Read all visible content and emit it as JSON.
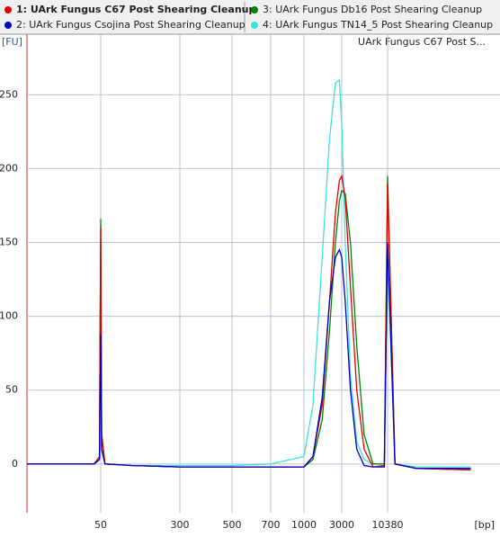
{
  "chart_data": {
    "type": "line",
    "title": "UArk Fungus C67 Post S...",
    "y_label": "[FU]",
    "x_label": "[bp]",
    "x": [
      15,
      45,
      49,
      50,
      51,
      55,
      100,
      300,
      500,
      700,
      1000,
      1300,
      1700,
      2100,
      2500,
      2800,
      3000,
      3300,
      3800,
      4500,
      5500,
      7000,
      9500,
      10380,
      11000,
      13000,
      20000
    ],
    "series": [
      {
        "name": "1: UArk Fungus C67 Post Shearing Cleanup",
        "color": "#e00000",
        "values": [
          0,
          0,
          5,
          160,
          20,
          0,
          -1,
          -2,
          -2,
          -2,
          -2,
          5,
          40,
          110,
          170,
          192,
          195,
          180,
          120,
          50,
          10,
          -2,
          -1,
          190,
          0,
          -3,
          -4
        ]
      },
      {
        "name": "2: UArk Fungus Csojina Post Shearing Cleanup",
        "color": "#0000c0",
        "values": [
          0,
          0,
          3,
          88,
          10,
          0,
          -1,
          -2,
          -2,
          -2,
          -2,
          5,
          45,
          110,
          140,
          145,
          140,
          110,
          50,
          10,
          -1,
          -2,
          -2,
          150,
          0,
          -3,
          -3
        ]
      },
      {
        "name": "3: UArk Fungus Db16 Post Shearing Cleanup",
        "color": "#008000",
        "values": [
          0,
          0,
          5,
          166,
          20,
          0,
          -1,
          -2,
          -2,
          -2,
          -2,
          3,
          30,
          90,
          150,
          178,
          185,
          183,
          150,
          80,
          20,
          0,
          0,
          195,
          0,
          -3,
          -4
        ]
      },
      {
        "name": "4: UArk Fungus TN14_5 Post Shearing Cleanup",
        "color": "#40e0e0",
        "values": [
          0,
          0,
          5,
          150,
          20,
          0,
          -1,
          -1,
          -1,
          0,
          5,
          40,
          140,
          220,
          258,
          260,
          230,
          150,
          60,
          15,
          3,
          0,
          0,
          140,
          0,
          -2,
          -2
        ]
      }
    ],
    "xlim": [
      15,
      25000
    ],
    "xticks": [
      50,
      300,
      500,
      700,
      1000,
      3000,
      10380
    ],
    "ylim": [
      -33,
      291
    ],
    "yticks": [
      0,
      50,
      100,
      150,
      200,
      250
    ],
    "grid": true
  }
}
